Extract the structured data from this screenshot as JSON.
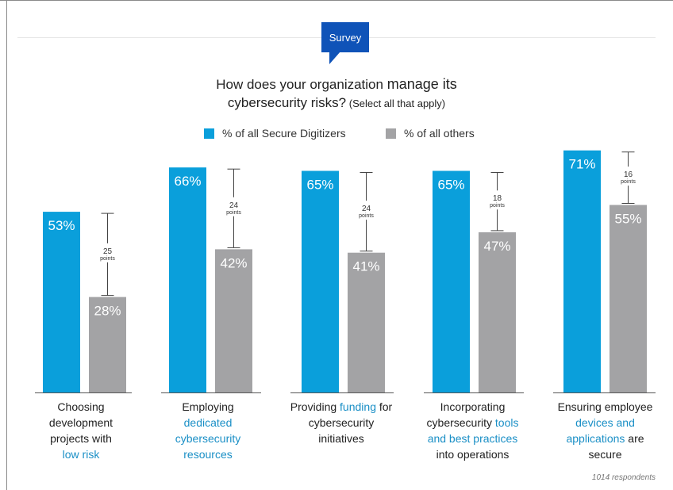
{
  "badge": "Survey",
  "title": {
    "line1_pre": "How does your organization ",
    "line1_em": "manage its",
    "line2": "cybersecurity risks?",
    "line2_small": " (Select all that apply)"
  },
  "legend": {
    "a": "% of all Secure Digitizers",
    "b": "% of all others"
  },
  "colors": {
    "a": "#0a9fdb",
    "b": "#a3a3a5",
    "highlight": "#1a8fc6"
  },
  "categories": [
    {
      "parts": [
        "Choosing",
        "development",
        "projects with"
      ],
      "hl": "low risk"
    },
    {
      "parts": [
        "Employing"
      ],
      "hl1": "dedicated",
      "hl2": "cybersecurity",
      "hl3": "resources"
    },
    {
      "p1": "Providing ",
      "hl": "funding",
      "p2": " for",
      "p3": "cybersecurity",
      "p4": "initiatives"
    },
    {
      "p1": "Incorporating",
      "p2": "cybersecurity ",
      "hl1": "tools",
      "hl2": "and best practices",
      "p3": "into operations"
    },
    {
      "p1": "Ensuring employee",
      "hl1": "devices and",
      "hl2": "applications",
      "p2": " are",
      "p3": "secure"
    }
  ],
  "respondents": "1014 respondents",
  "chart_data": {
    "type": "bar",
    "title": "How does your organization manage its cybersecurity risks? (Select all that apply)",
    "categories": [
      "Choosing development projects with low risk",
      "Employing dedicated cybersecurity resources",
      "Providing funding for cybersecurity initiatives",
      "Incorporating cybersecurity tools and best practices into operations",
      "Ensuring employee devices and applications are secure"
    ],
    "series": [
      {
        "name": "% of all Secure Digitizers",
        "values": [
          53,
          66,
          65,
          65,
          71
        ]
      },
      {
        "name": "% of all others",
        "values": [
          28,
          42,
          41,
          47,
          55
        ]
      }
    ],
    "differences": [
      25,
      24,
      24,
      18,
      16
    ],
    "difference_unit": "points",
    "ylim": [
      0,
      100
    ],
    "grid": false,
    "legend": "top"
  }
}
